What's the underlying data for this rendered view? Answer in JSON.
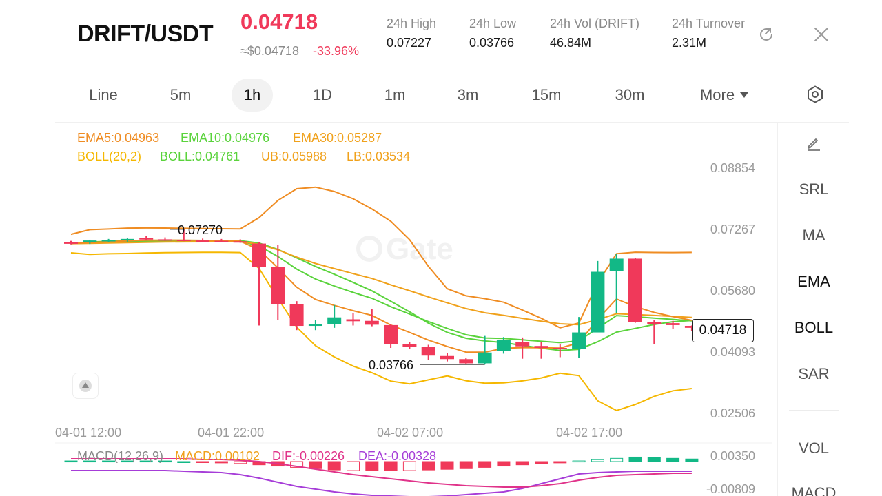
{
  "header": {
    "pair": "DRIFT/USDT",
    "last_price": "0.04718",
    "approx_usd": "≈$0.04718",
    "change": "-33.96%",
    "stats": [
      {
        "label": "24h   High",
        "value": "0.07227"
      },
      {
        "label": "24h   Low",
        "value": "0.03766"
      },
      {
        "label": "24h   Vol (DRIFT)",
        "value": "46.84M"
      },
      {
        "label": "24h   Turnover",
        "value": "2.31M"
      }
    ],
    "share_icon": "share-icon",
    "close_icon": "close-icon"
  },
  "intervals": [
    {
      "label": "Line"
    },
    {
      "label": "5m"
    },
    {
      "label": "1h",
      "active": true
    },
    {
      "label": "1D"
    },
    {
      "label": "1m"
    },
    {
      "label": "3m"
    },
    {
      "label": "15m"
    },
    {
      "label": "30m"
    },
    {
      "label": "More"
    }
  ],
  "settings_icon": "settings-hexagon-icon",
  "legend": {
    "ema5": "EMA5:0.04963",
    "ema10": "EMA10:0.04976",
    "ema30": "EMA30:0.05287",
    "boll_params": "BOLL(20,2)",
    "boll": "BOLL:0.04761",
    "ub": "UB:0.05988",
    "lb": "LB:0.03534"
  },
  "macd_legend": {
    "params": "MACD(12,26,9)",
    "macd": "MACD:0.00102",
    "dif": "DIF:-0.00226",
    "dea": "DEA:-0.00328"
  },
  "colors": {
    "up": "#12b886",
    "down": "#f0395a",
    "ema5": "#f0a11b",
    "ema10": "#5ad33c",
    "ema30": "#f0a11b",
    "boll_mid": "#5ad33c",
    "boll_band": "#f5b700",
    "ema_orange": "#ef8c22",
    "dif": "#e0338a",
    "dea": "#a63dd8"
  },
  "price_axis": [
    "0.08854",
    "0.07267",
    "0.05680",
    "0.04093",
    "0.02506"
  ],
  "macd_axis": [
    "0.00350",
    "-0.00809"
  ],
  "time_axis": [
    "04-01 12:00",
    "04-01 22:00",
    "04-02 07:00",
    "04-02 17:00"
  ],
  "current_price_tag": "0.04718",
  "high_marker": "0.07270",
  "low_marker": "0.03766",
  "watermark": "Gate",
  "indicators": [
    {
      "label": "SRL",
      "on": false
    },
    {
      "label": "MA",
      "on": false
    },
    {
      "label": "EMA",
      "on": true
    },
    {
      "label": "BOLL",
      "on": true
    },
    {
      "label": "SAR",
      "on": false
    },
    {
      "label": "VOL",
      "on": false
    },
    {
      "label": "MACD",
      "on": false
    }
  ],
  "edit_icon": "pencil-icon",
  "chart_data": {
    "type": "candlestick",
    "interval": "1h",
    "y_range": [
      0.02506,
      0.08854
    ],
    "candles": [
      {
        "o": 0.0693,
        "h": 0.0697,
        "l": 0.0688,
        "c": 0.069
      },
      {
        "o": 0.0694,
        "h": 0.07,
        "l": 0.0689,
        "c": 0.0698
      },
      {
        "o": 0.0697,
        "h": 0.0702,
        "l": 0.0693,
        "c": 0.0699
      },
      {
        "o": 0.0699,
        "h": 0.0705,
        "l": 0.0695,
        "c": 0.0702
      },
      {
        "o": 0.0704,
        "h": 0.071,
        "l": 0.0698,
        "c": 0.0701
      },
      {
        "o": 0.0701,
        "h": 0.0706,
        "l": 0.0697,
        "c": 0.07
      },
      {
        "o": 0.07,
        "h": 0.0727,
        "l": 0.0696,
        "c": 0.0698
      },
      {
        "o": 0.0698,
        "h": 0.0703,
        "l": 0.0694,
        "c": 0.0697
      },
      {
        "o": 0.0697,
        "h": 0.0702,
        "l": 0.0693,
        "c": 0.0696
      },
      {
        "o": 0.0696,
        "h": 0.0701,
        "l": 0.0692,
        "c": 0.0694
      },
      {
        "o": 0.069,
        "h": 0.0694,
        "l": 0.0478,
        "c": 0.0629
      },
      {
        "o": 0.063,
        "h": 0.0687,
        "l": 0.0492,
        "c": 0.0534
      },
      {
        "o": 0.0534,
        "h": 0.0541,
        "l": 0.0466,
        "c": 0.0477
      },
      {
        "o": 0.0477,
        "h": 0.0492,
        "l": 0.0466,
        "c": 0.0482
      },
      {
        "o": 0.0481,
        "h": 0.0531,
        "l": 0.0472,
        "c": 0.0499
      },
      {
        "o": 0.0494,
        "h": 0.051,
        "l": 0.0478,
        "c": 0.0489
      },
      {
        "o": 0.049,
        "h": 0.0521,
        "l": 0.0476,
        "c": 0.048
      },
      {
        "o": 0.0479,
        "h": 0.0482,
        "l": 0.042,
        "c": 0.0429
      },
      {
        "o": 0.043,
        "h": 0.0436,
        "l": 0.0418,
        "c": 0.0422
      },
      {
        "o": 0.0423,
        "h": 0.0428,
        "l": 0.0388,
        "c": 0.04
      },
      {
        "o": 0.0399,
        "h": 0.0406,
        "l": 0.0385,
        "c": 0.0391
      },
      {
        "o": 0.0391,
        "h": 0.0394,
        "l": 0.0377,
        "c": 0.038
      },
      {
        "o": 0.038,
        "h": 0.0451,
        "l": 0.0377,
        "c": 0.0408
      },
      {
        "o": 0.0412,
        "h": 0.0448,
        "l": 0.0405,
        "c": 0.044
      },
      {
        "o": 0.0436,
        "h": 0.0447,
        "l": 0.0392,
        "c": 0.0424
      },
      {
        "o": 0.0425,
        "h": 0.0435,
        "l": 0.0392,
        "c": 0.042
      },
      {
        "o": 0.042,
        "h": 0.043,
        "l": 0.0396,
        "c": 0.0418
      },
      {
        "o": 0.0417,
        "h": 0.05,
        "l": 0.0395,
        "c": 0.046
      },
      {
        "o": 0.046,
        "h": 0.0645,
        "l": 0.0461,
        "c": 0.0617
      },
      {
        "o": 0.0619,
        "h": 0.0664,
        "l": 0.051,
        "c": 0.0651
      },
      {
        "o": 0.0651,
        "h": 0.0653,
        "l": 0.0485,
        "c": 0.0487
      },
      {
        "o": 0.0486,
        "h": 0.0492,
        "l": 0.043,
        "c": 0.0482
      },
      {
        "o": 0.0484,
        "h": 0.049,
        "l": 0.047,
        "c": 0.0479
      },
      {
        "o": 0.0477,
        "h": 0.0478,
        "l": 0.0464,
        "c": 0.0472
      }
    ],
    "macd_histogram": [
      0.0001,
      0.0001,
      0.0001,
      0.0001,
      0.0001,
      0.0001,
      0.0,
      -0.0001,
      -0.0002,
      -0.0003,
      -0.0005,
      -0.0007,
      -0.0009,
      -0.0011,
      -0.0013,
      -0.0014,
      -0.0014,
      -0.0014,
      -0.0014,
      -0.0013,
      -0.0012,
      -0.0011,
      -0.0009,
      -0.0007,
      -0.0005,
      -0.0003,
      -0.0002,
      0.0001,
      0.0003,
      0.0005,
      0.0007,
      0.0006,
      0.0005,
      0.0004
    ]
  }
}
